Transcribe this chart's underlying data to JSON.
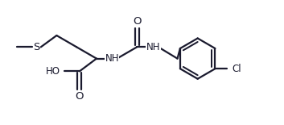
{
  "bg_color": "#ffffff",
  "line_color": "#1a1a2e",
  "line_width": 1.6,
  "font_size": 8.5,
  "xlim": [
    0,
    10
  ],
  "ylim": [
    0,
    4.4
  ]
}
